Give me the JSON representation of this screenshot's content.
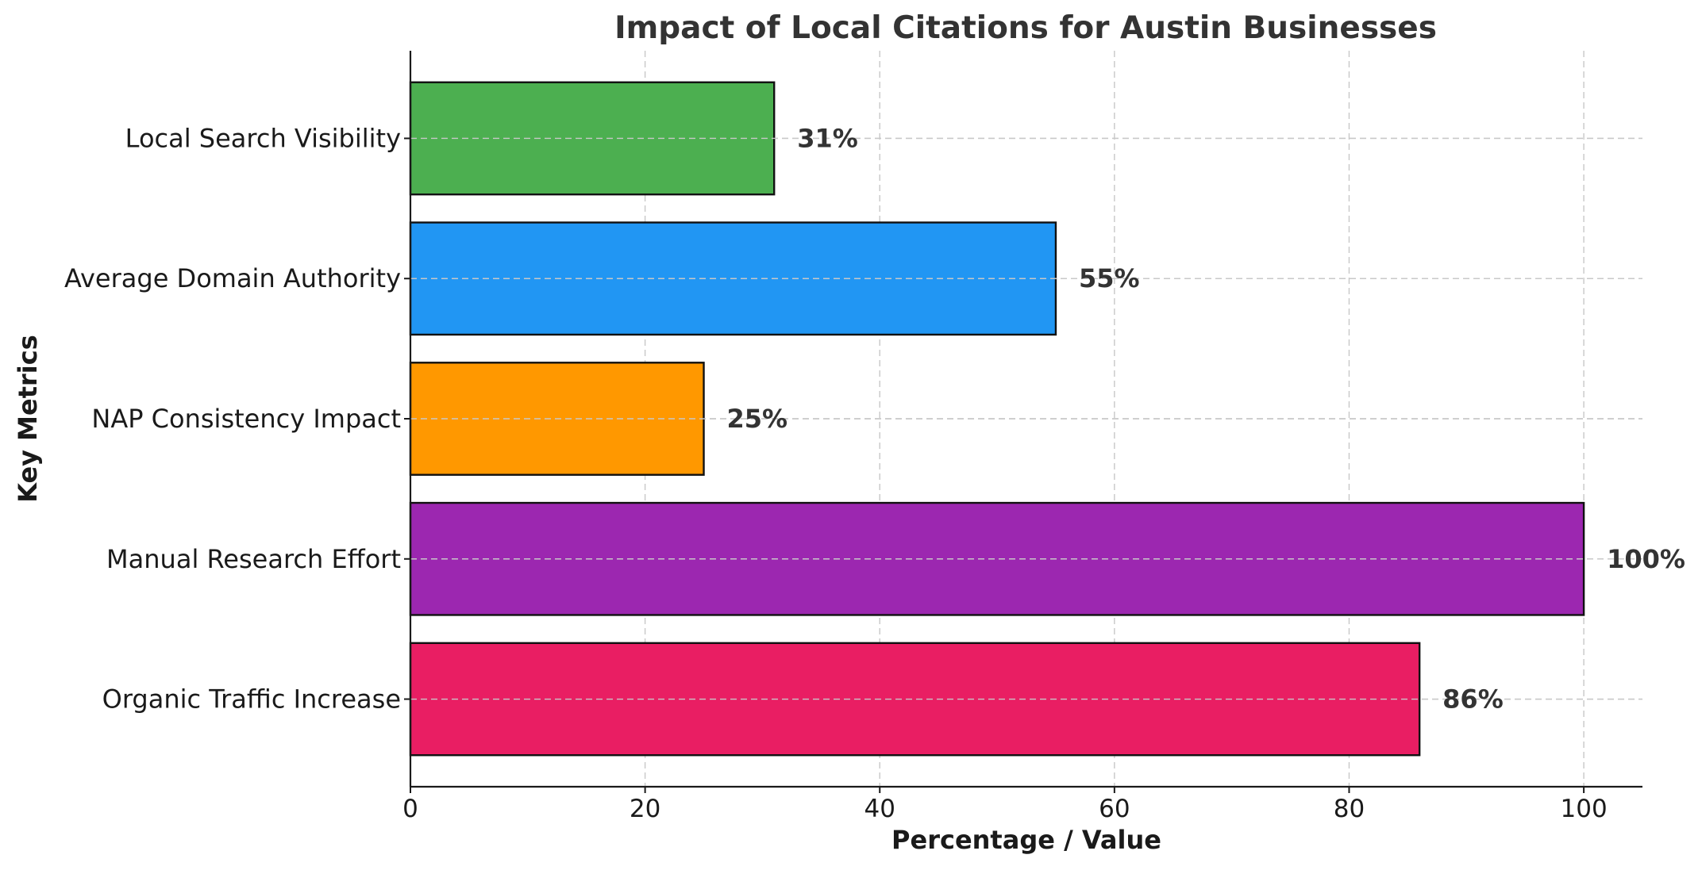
{
  "chart_data": {
    "type": "bar",
    "orientation": "horizontal",
    "title": "Impact of Local Citations for Austin Businesses",
    "xlabel": "Percentage / Value",
    "ylabel": "Key Metrics",
    "xlim": [
      0,
      105
    ],
    "xticks": [
      0,
      20,
      40,
      60,
      80,
      100
    ],
    "xtick_labels": [
      "0",
      "20",
      "40",
      "60",
      "80",
      "100"
    ],
    "grid": true,
    "categories": [
      "Organic Traffic Increase",
      "Manual Research Effort",
      "NAP Consistency Impact",
      "Average Domain Authority",
      "Local Search Visibility"
    ],
    "values": [
      86,
      100,
      25,
      55,
      31
    ],
    "data_labels": [
      "86%",
      "100%",
      "25%",
      "55%",
      "31%"
    ],
    "colors": [
      "#E91E63",
      "#9C27B0",
      "#FF9800",
      "#2196F3",
      "#4CAF50"
    ]
  }
}
